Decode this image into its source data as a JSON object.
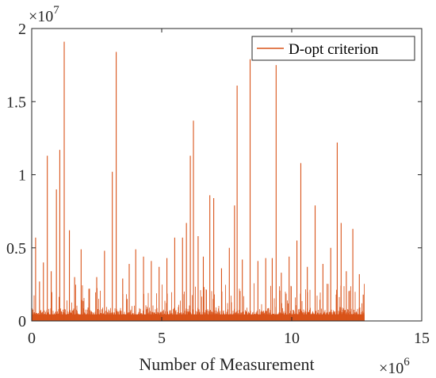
{
  "chart_data": {
    "type": "line",
    "title": "",
    "xlabel": "Number of Measurement",
    "ylabel": "",
    "x_exponent_label": "×10",
    "x_exponent_power": "6",
    "y_exponent_label": "×10",
    "y_exponent_power": "7",
    "xlim": [
      0,
      15
    ],
    "ylim": [
      0,
      2
    ],
    "x_units": "×10^6 measurements",
    "y_units": "×10^7",
    "xticks": [
      0,
      5,
      10,
      15
    ],
    "xtick_labels": [
      "0",
      "5",
      "10",
      "15"
    ],
    "yticks": [
      0,
      0.5,
      1,
      1.5,
      2
    ],
    "ytick_labels": [
      "0",
      "0.5",
      "1",
      "1.5",
      "2"
    ],
    "grid": false,
    "legend_position": "top-right",
    "data_x_max": 12.8,
    "series": [
      {
        "name": "D-opt criterion",
        "color": "#d95319",
        "baseline_band": [
          0,
          0.1
        ],
        "spikes": [
          [
            0.15,
            0.57
          ],
          [
            0.3,
            0.27
          ],
          [
            0.45,
            0.4
          ],
          [
            0.6,
            1.13
          ],
          [
            0.75,
            0.34
          ],
          [
            0.95,
            0.9
          ],
          [
            1.08,
            1.17
          ],
          [
            1.25,
            1.91
          ],
          [
            1.45,
            0.62
          ],
          [
            1.65,
            0.3
          ],
          [
            1.9,
            0.49
          ],
          [
            2.2,
            0.22
          ],
          [
            2.5,
            0.3
          ],
          [
            2.8,
            0.48
          ],
          [
            3.1,
            1.02
          ],
          [
            3.25,
            1.84
          ],
          [
            3.5,
            0.29
          ],
          [
            3.75,
            0.39
          ],
          [
            4.0,
            0.49
          ],
          [
            4.3,
            0.44
          ],
          [
            4.6,
            0.41
          ],
          [
            4.9,
            0.37
          ],
          [
            5.2,
            0.43
          ],
          [
            5.5,
            0.57
          ],
          [
            5.8,
            0.57
          ],
          [
            5.95,
            0.67
          ],
          [
            6.1,
            1.13
          ],
          [
            6.22,
            1.37
          ],
          [
            6.4,
            0.58
          ],
          [
            6.6,
            0.44
          ],
          [
            6.85,
            0.86
          ],
          [
            7.0,
            0.84
          ],
          [
            7.3,
            0.36
          ],
          [
            7.6,
            0.5
          ],
          [
            7.8,
            0.79
          ],
          [
            7.9,
            1.61
          ],
          [
            8.1,
            0.42
          ],
          [
            8.4,
            1.79
          ],
          [
            8.7,
            0.41
          ],
          [
            9.0,
            0.43
          ],
          [
            9.25,
            0.43
          ],
          [
            9.4,
            1.75
          ],
          [
            9.6,
            0.33
          ],
          [
            9.9,
            0.44
          ],
          [
            10.2,
            0.55
          ],
          [
            10.35,
            1.08
          ],
          [
            10.6,
            0.37
          ],
          [
            10.9,
            0.79
          ],
          [
            11.2,
            0.39
          ],
          [
            11.5,
            0.5
          ],
          [
            11.75,
            1.22
          ],
          [
            11.9,
            0.67
          ],
          [
            12.1,
            0.34
          ],
          [
            12.35,
            0.63
          ],
          [
            12.6,
            0.32
          ],
          [
            12.75,
            0.18
          ]
        ]
      }
    ]
  }
}
